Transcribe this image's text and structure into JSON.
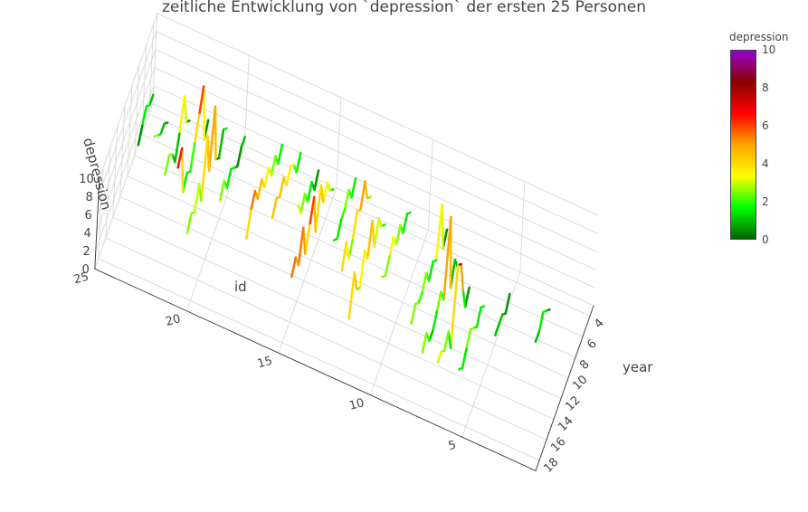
{
  "title": "zeitliche Entwicklung von `depression` der ersten 25 Personen",
  "colorbar": {
    "title": "depression",
    "ticks": [
      "0",
      "2",
      "4",
      "6",
      "8",
      "10"
    ],
    "colors": [
      "#006400",
      "#00ff00",
      "#ffff00",
      "#ffa500",
      "#ff0000",
      "#8b0000",
      "#9400d3"
    ]
  },
  "axes": {
    "year": {
      "label": "year",
      "ticks": [
        "4",
        "6",
        "8",
        "10",
        "12",
        "14",
        "16",
        "18"
      ]
    },
    "id": {
      "label": "id",
      "ticks": [
        "5",
        "10",
        "15",
        "20",
        "25"
      ]
    },
    "depression": {
      "label": "depression",
      "ticks": [
        "0",
        "2",
        "4",
        "6",
        "8",
        "10"
      ]
    }
  },
  "chart_data": {
    "type": "line3d",
    "title": "zeitliche Entwicklung von `depression` der ersten 25 Personen",
    "xlabel": "year",
    "ylabel": "id",
    "zlabel": "depression",
    "xlim": [
      3,
      19
    ],
    "ylim": [
      1,
      25
    ],
    "zlim": [
      0,
      10
    ],
    "colorscale_range": [
      0,
      10
    ],
    "series": [
      {
        "id": 3,
        "x": [
          5,
          6,
          7,
          8,
          9
        ],
        "y": [
          3,
          3,
          3,
          3,
          3
        ],
        "z": [
          0,
          1,
          2,
          1,
          1
        ]
      },
      {
        "id": 5,
        "x": [
          6,
          7,
          8,
          9,
          10
        ],
        "y": [
          5,
          5,
          5,
          5,
          5
        ],
        "z": [
          1,
          0,
          1,
          1,
          1
        ]
      },
      {
        "id": 6,
        "x": [
          8,
          9,
          10,
          11,
          12,
          13,
          14,
          15
        ],
        "y": [
          6,
          6,
          6,
          6,
          6,
          6,
          6,
          6
        ],
        "z": [
          1,
          2,
          1,
          2,
          3,
          2,
          1,
          2
        ]
      },
      {
        "id": 7,
        "x": [
          7,
          8,
          9,
          10,
          11,
          12,
          13,
          14,
          15,
          16
        ],
        "y": [
          7,
          7,
          7,
          7,
          7,
          7,
          7,
          7,
          7,
          7
        ],
        "z": [
          1,
          0,
          3,
          7,
          8,
          0,
          3,
          2,
          3,
          3
        ]
      },
      {
        "id": 8,
        "x": [
          5,
          6,
          7,
          8,
          9,
          10,
          11,
          12,
          13,
          14,
          15
        ],
        "y": [
          8,
          8,
          8,
          8,
          8,
          8,
          8,
          8,
          8,
          8,
          8
        ],
        "z": [
          0,
          2,
          0,
          9,
          1,
          3,
          2,
          1,
          1,
          3,
          2
        ]
      },
      {
        "id": 9,
        "x": [
          3,
          4,
          5,
          6,
          7,
          8,
          9,
          10,
          11,
          12,
          13
        ],
        "y": [
          9,
          9,
          9,
          9,
          9,
          9,
          9,
          9,
          9,
          9,
          9
        ],
        "z": [
          1,
          0,
          6,
          1,
          2,
          1,
          3,
          2,
          2,
          3,
          2
        ]
      },
      {
        "id": 11,
        "x": [
          3,
          4,
          5,
          6,
          7,
          8,
          9,
          10,
          11
        ],
        "y": [
          11,
          11,
          11,
          11,
          11,
          11,
          11,
          11,
          11
        ],
        "z": [
          1,
          2,
          1,
          3,
          2,
          4,
          3,
          2,
          3
        ]
      },
      {
        "id": 12,
        "x": [
          5,
          6,
          7,
          8,
          9,
          10,
          11,
          12,
          13,
          14,
          15
        ],
        "y": [
          12,
          12,
          12,
          12,
          12,
          12,
          12,
          12,
          12,
          12,
          12
        ],
        "z": [
          1,
          2,
          4,
          2,
          6,
          3,
          5,
          2,
          3,
          6,
          2
        ]
      },
      {
        "id": 13,
        "x": [
          4,
          5,
          6,
          7,
          8,
          9,
          10,
          11,
          12
        ],
        "y": [
          13,
          13,
          13,
          13,
          13,
          13,
          13,
          13,
          13
        ],
        "z": [
          2,
          3,
          6,
          4,
          5,
          3,
          2,
          5,
          3
        ]
      },
      {
        "id": 14,
        "x": [
          3,
          4,
          5,
          6,
          7,
          8,
          9
        ],
        "y": [
          14,
          14,
          14,
          14,
          14,
          14,
          14
        ],
        "z": [
          2,
          1,
          3,
          2,
          2,
          1,
          2
        ]
      },
      {
        "id": 15,
        "x": [
          4,
          5,
          6,
          7,
          8,
          9,
          10,
          11,
          12,
          13,
          14,
          15,
          16
        ],
        "y": [
          15,
          15,
          15,
          15,
          15,
          15,
          15,
          15,
          15,
          15,
          15,
          15,
          15
        ],
        "z": [
          1,
          2,
          4,
          3,
          6,
          2,
          7,
          5,
          3,
          7,
          4,
          6,
          5
        ]
      },
      {
        "id": 16,
        "x": [
          3,
          4,
          5,
          6,
          7,
          8,
          9
        ],
        "y": [
          16,
          16,
          16,
          16,
          16,
          16,
          16
        ],
        "z": [
          1,
          0,
          2,
          1,
          3,
          2,
          4
        ]
      },
      {
        "id": 17,
        "x": [
          3,
          4,
          5,
          6,
          7,
          8,
          9,
          10,
          11
        ],
        "y": [
          17,
          17,
          17,
          17,
          17,
          17,
          17,
          17,
          17
        ],
        "z": [
          2,
          1,
          3,
          4,
          3,
          5,
          4,
          5,
          4
        ]
      },
      {
        "id": 18,
        "x": [
          3,
          4,
          5,
          6,
          7,
          8,
          9,
          10,
          11,
          12,
          13
        ],
        "y": [
          18,
          18,
          18,
          18,
          18,
          18,
          18,
          18,
          18,
          18,
          18
        ],
        "z": [
          2,
          1,
          3,
          2,
          4,
          3,
          5,
          4,
          6,
          5,
          3
        ]
      },
      {
        "id": 20,
        "x": [
          3,
          4,
          5,
          6,
          7,
          8,
          9,
          10
        ],
        "y": [
          20,
          20,
          20,
          20,
          20,
          20,
          20,
          20
        ],
        "z": [
          1,
          1,
          0,
          1,
          2,
          1,
          3,
          2
        ]
      },
      {
        "id": 21,
        "x": [
          3,
          4,
          5,
          6,
          7,
          8,
          9,
          10,
          11,
          12,
          13,
          14
        ],
        "y": [
          21,
          21,
          21,
          21,
          21,
          21,
          21,
          21,
          21,
          21,
          21,
          21
        ],
        "z": [
          1,
          2,
          0,
          1,
          8,
          2,
          7,
          1,
          4,
          2,
          3,
          2
        ]
      },
      {
        "id": 22,
        "x": [
          3,
          4,
          5,
          6,
          7,
          8,
          9,
          10,
          11,
          12
        ],
        "y": [
          22,
          22,
          22,
          22,
          22,
          22,
          22,
          22,
          22,
          22
        ],
        "z": [
          1,
          0,
          7,
          5,
          3,
          1,
          2,
          1,
          7,
          6
        ]
      },
      {
        "id": 23,
        "x": [
          3,
          4,
          5,
          6,
          7,
          8,
          9,
          10
        ],
        "y": [
          23,
          23,
          23,
          23,
          23,
          23,
          23,
          23
        ],
        "z": [
          0,
          1,
          5,
          2,
          0,
          2,
          3,
          2
        ]
      },
      {
        "id": 24,
        "x": [
          4,
          5,
          6,
          7,
          8
        ],
        "y": [
          24,
          24,
          24,
          24,
          24
        ],
        "z": [
          0,
          1,
          1,
          2,
          3
        ]
      },
      {
        "id": 25,
        "x": [
          3,
          4,
          5,
          6,
          7
        ],
        "y": [
          25,
          25,
          25,
          25,
          25
        ],
        "z": [
          1,
          1,
          2,
          1,
          0
        ]
      }
    ]
  }
}
